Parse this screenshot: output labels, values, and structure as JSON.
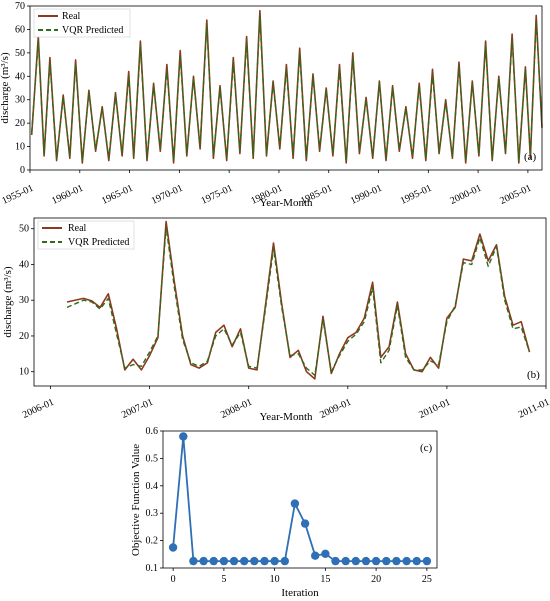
{
  "charts": {
    "a": {
      "panel_label": "(a)",
      "xlabel": "Year-Month",
      "ylabel": "discharge (m³/s)",
      "legend": {
        "real": "Real",
        "pred": "VQR Predicted"
      },
      "xticks": [
        "1955-01",
        "1960-01",
        "1965-01",
        "1970-01",
        "1975-01",
        "1980-01",
        "1985-01",
        "1990-01",
        "1995-01",
        "2000-01",
        "2005-01"
      ],
      "yticks": [
        "0",
        "10",
        "20",
        "30",
        "40",
        "50",
        "60",
        "70"
      ]
    },
    "b": {
      "panel_label": "(b)",
      "xlabel": "Year-Month",
      "ylabel": "discharge (m³/s)",
      "legend": {
        "real": "Real",
        "pred": "VQR Predicted"
      },
      "xticks": [
        "2006-01",
        "2007-01",
        "2008-01",
        "2009-01",
        "2010-01",
        "2011-01"
      ],
      "yticks": [
        "10",
        "20",
        "30",
        "40",
        "50"
      ]
    },
    "c": {
      "panel_label": "(c)",
      "xlabel": "Iteration",
      "ylabel": "Objective Function Value",
      "xticks": [
        "0",
        "5",
        "10",
        "15",
        "20",
        "25"
      ],
      "yticks": [
        "0.1",
        "0.2",
        "0.3",
        "0.4",
        "0.5",
        "0.6"
      ]
    }
  },
  "colors": {
    "real": "#8b3a1f",
    "pred": "#2e6b1a",
    "convergence": "#2e6fb5"
  },
  "chart_data": [
    {
      "type": "line",
      "id": "a",
      "xlabel": "Year-Month",
      "ylabel": "discharge (m³/s)",
      "ylim": [
        0,
        70
      ],
      "xrange": [
        "1955-01",
        "2006-06"
      ],
      "legend_position": "top-left",
      "series": [
        {
          "name": "Real",
          "x": [
            "1955-03",
            "1955-11",
            "1956-06",
            "1957-01",
            "1957-09",
            "1958-05",
            "1959-01",
            "1959-08",
            "1960-04",
            "1960-12",
            "1961-08",
            "1962-04",
            "1962-12",
            "1963-08",
            "1964-04",
            "1964-12",
            "1965-06",
            "1966-02",
            "1966-10",
            "1967-06",
            "1968-02",
            "1968-10",
            "1969-06",
            "1970-02",
            "1970-10",
            "1971-06",
            "1972-02",
            "1972-10",
            "1973-06",
            "1974-02",
            "1974-10",
            "1975-06",
            "1976-02",
            "1976-10",
            "1977-06",
            "1978-02",
            "1978-10",
            "1979-06",
            "1980-02",
            "1980-10",
            "1981-06",
            "1982-02",
            "1982-10",
            "1983-06",
            "1984-02",
            "1984-10",
            "1985-06",
            "1986-02",
            "1986-10",
            "1987-06",
            "1988-02",
            "1988-10",
            "1989-06",
            "1990-02",
            "1990-10",
            "1991-06",
            "1992-02",
            "1992-10",
            "1993-06",
            "1994-02",
            "1994-10",
            "1995-06",
            "1996-02",
            "1996-10",
            "1997-06",
            "1998-02",
            "1998-10",
            "1999-06",
            "2000-02",
            "2000-10",
            "2001-06",
            "2002-02",
            "2002-10",
            "2003-06",
            "2004-02",
            "2004-10",
            "2005-04",
            "2005-11",
            "2006-06"
          ],
          "values": [
            15,
            57,
            6,
            48,
            4,
            32,
            5,
            47,
            3,
            34,
            8,
            27,
            4,
            33,
            6,
            42,
            5,
            55,
            4,
            37,
            8,
            45,
            3,
            51,
            6,
            40,
            9,
            64,
            5,
            36,
            4,
            48,
            7,
            57,
            5,
            68,
            6,
            38,
            9,
            45,
            5,
            52,
            4,
            41,
            8,
            35,
            6,
            45,
            3,
            50,
            7,
            31,
            5,
            38,
            4,
            36,
            8,
            27,
            5,
            37,
            4,
            43,
            7,
            30,
            5,
            46,
            3,
            38,
            6,
            55,
            4,
            40,
            7,
            58,
            3,
            44,
            5,
            66,
            18
          ]
        },
        {
          "name": "VQR Predicted",
          "x": [
            "1955-03",
            "1955-11",
            "1956-06",
            "1957-01",
            "1957-09",
            "1958-05",
            "1959-01",
            "1959-08",
            "1960-04",
            "1960-12",
            "1961-08",
            "1962-04",
            "1962-12",
            "1963-08",
            "1964-04",
            "1964-12",
            "1965-06",
            "1966-02",
            "1966-10",
            "1967-06",
            "1968-02",
            "1968-10",
            "1969-06",
            "1970-02",
            "1970-10",
            "1971-06",
            "1972-02",
            "1972-10",
            "1973-06",
            "1974-02",
            "1974-10",
            "1975-06",
            "1976-02",
            "1976-10",
            "1977-06",
            "1978-02",
            "1978-10",
            "1979-06",
            "1980-02",
            "1980-10",
            "1981-06",
            "1982-02",
            "1982-10",
            "1983-06",
            "1984-02",
            "1984-10",
            "1985-06",
            "1986-02",
            "1986-10",
            "1987-06",
            "1988-02",
            "1988-10",
            "1989-06",
            "1990-02",
            "1990-10",
            "1991-06",
            "1992-02",
            "1992-10",
            "1993-06",
            "1994-02",
            "1994-10",
            "1995-06",
            "1996-02",
            "1996-10",
            "1997-06",
            "1998-02",
            "1998-10",
            "1999-06",
            "2000-02",
            "2000-10",
            "2001-06",
            "2002-02",
            "2002-10",
            "2003-06",
            "2004-02",
            "2004-10",
            "2005-04",
            "2005-11",
            "2006-06"
          ],
          "values": [
            16,
            55,
            7,
            46,
            5,
            31,
            6,
            45,
            4,
            33,
            9,
            26,
            5,
            32,
            7,
            40,
            6,
            53,
            5,
            36,
            9,
            43,
            4,
            49,
            7,
            39,
            10,
            62,
            6,
            35,
            5,
            46,
            8,
            55,
            6,
            66,
            7,
            37,
            10,
            43,
            6,
            50,
            5,
            40,
            9,
            34,
            7,
            43,
            4,
            48,
            8,
            30,
            6,
            37,
            5,
            35,
            9,
            26,
            6,
            36,
            5,
            41,
            8,
            29,
            6,
            44,
            4,
            37,
            7,
            53,
            5,
            39,
            8,
            56,
            4,
            43,
            6,
            64,
            19
          ]
        }
      ]
    },
    {
      "type": "line",
      "id": "b",
      "xlabel": "Year-Month",
      "ylabel": "discharge (m³/s)",
      "ylim": [
        6,
        53
      ],
      "xrange": [
        "2005-11",
        "2011-01"
      ],
      "legend_position": "top-left",
      "series": [
        {
          "name": "Real",
          "x": [
            "2006-03",
            "2006-05",
            "2006-06",
            "2006-07",
            "2006-08",
            "2006-09",
            "2006-10",
            "2006-11",
            "2006-12",
            "2007-01",
            "2007-02",
            "2007-03",
            "2007-04",
            "2007-05",
            "2007-06",
            "2007-07",
            "2007-08",
            "2007-09",
            "2007-10",
            "2007-11",
            "2007-12",
            "2008-01",
            "2008-02",
            "2008-03",
            "2008-04",
            "2008-05",
            "2008-06",
            "2008-07",
            "2008-08",
            "2008-09",
            "2008-10",
            "2008-11",
            "2008-12",
            "2009-01",
            "2009-02",
            "2009-03",
            "2009-04",
            "2009-05",
            "2009-06",
            "2009-07",
            "2009-08",
            "2009-09",
            "2009-10",
            "2009-11",
            "2009-12",
            "2010-01",
            "2010-02",
            "2010-03",
            "2010-04",
            "2010-05",
            "2010-06",
            "2010-07",
            "2010-08",
            "2010-09",
            "2010-10",
            "2010-11"
          ],
          "values": [
            29.5,
            30.5,
            29.8,
            28,
            31.8,
            22,
            10.5,
            13.5,
            10.5,
            14.5,
            19.5,
            52,
            35,
            20,
            12,
            11,
            12.5,
            21,
            23,
            17,
            22,
            11,
            10.5,
            28,
            46,
            29,
            14,
            16,
            10,
            8,
            25.5,
            9.5,
            15,
            19.5,
            21,
            25,
            35,
            14,
            17,
            29.5,
            15,
            10.5,
            10,
            14,
            11,
            25,
            28,
            41.5,
            41,
            48.5,
            41,
            45.5,
            31,
            23,
            24,
            15.5
          ]
        },
        {
          "name": "VQR Predicted",
          "x": [
            "2006-03",
            "2006-05",
            "2006-06",
            "2006-07",
            "2006-08",
            "2006-09",
            "2006-10",
            "2006-11",
            "2006-12",
            "2007-01",
            "2007-02",
            "2007-03",
            "2007-04",
            "2007-05",
            "2007-06",
            "2007-07",
            "2007-08",
            "2007-09",
            "2007-10",
            "2007-11",
            "2007-12",
            "2008-01",
            "2008-02",
            "2008-03",
            "2008-04",
            "2008-05",
            "2008-06",
            "2008-07",
            "2008-08",
            "2008-09",
            "2008-10",
            "2008-11",
            "2008-12",
            "2009-01",
            "2009-02",
            "2009-03",
            "2009-04",
            "2009-05",
            "2009-06",
            "2009-07",
            "2009-08",
            "2009-09",
            "2009-10",
            "2009-11",
            "2009-12",
            "2010-01",
            "2010-02",
            "2010-03",
            "2010-04",
            "2010-05",
            "2010-06",
            "2010-07",
            "2010-08",
            "2010-09",
            "2010-10",
            "2010-11"
          ],
          "values": [
            28,
            30,
            29.5,
            27.5,
            30.5,
            20.5,
            11,
            12,
            11.5,
            15.5,
            20,
            50.5,
            33.5,
            19,
            12.5,
            11.5,
            13,
            20,
            22,
            17.5,
            21,
            11.5,
            11,
            27,
            44.5,
            28,
            14.5,
            15,
            11,
            9,
            24.5,
            10,
            14.5,
            18.5,
            20.5,
            24,
            33.5,
            12.5,
            16,
            28.5,
            14,
            10.5,
            10.5,
            13,
            12,
            24,
            28.5,
            40.5,
            40,
            47.5,
            39.5,
            45,
            30,
            22,
            22.5,
            15.5
          ]
        }
      ]
    },
    {
      "type": "line",
      "id": "c",
      "xlabel": "Iteration",
      "ylabel": "Objective Function Value",
      "xlim": [
        -1,
        26
      ],
      "ylim": [
        0.1,
        0.6
      ],
      "series": [
        {
          "name": "",
          "x": [
            0,
            1,
            2,
            3,
            4,
            5,
            6,
            7,
            8,
            9,
            10,
            11,
            12,
            13,
            14,
            15,
            16,
            17,
            18,
            19,
            20,
            21,
            22,
            23,
            24,
            25
          ],
          "values": [
            0.175,
            0.58,
            0.125,
            0.125,
            0.125,
            0.125,
            0.125,
            0.125,
            0.125,
            0.125,
            0.125,
            0.125,
            0.335,
            0.262,
            0.145,
            0.152,
            0.125,
            0.125,
            0.125,
            0.125,
            0.125,
            0.125,
            0.125,
            0.125,
            0.125,
            0.125
          ]
        }
      ]
    }
  ]
}
